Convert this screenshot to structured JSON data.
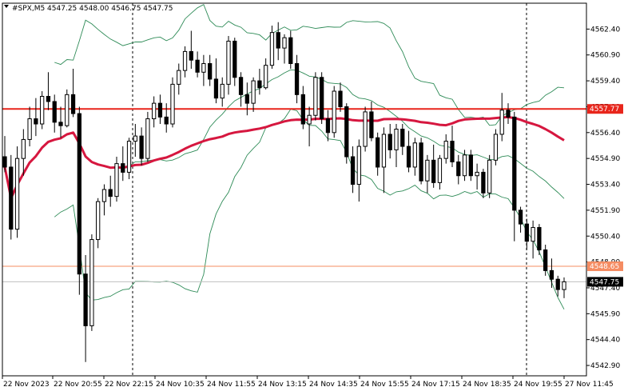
{
  "chart_data": {
    "type": "candlestick",
    "title": "#SPX,M5  4547.25 4548.00 4546.75 4547.75",
    "symbol": "#SPX",
    "timeframe": "M5",
    "ohlc_readout": {
      "open": "4547.25",
      "high": "4548.00",
      "low": "4546.75",
      "close": "4547.75"
    },
    "ylim": [
      4542.3,
      4563.9
    ],
    "y_ticks": [
      "4562.40",
      "4560.90",
      "4559.40",
      "4557.90",
      "4556.40",
      "4554.90",
      "4553.40",
      "4551.90",
      "4550.40",
      "4548.90",
      "4547.40",
      "4545.90",
      "4544.40",
      "4542.90"
    ],
    "x_ticks": [
      "22 Nov 2023",
      "22 Nov 20:55",
      "22 Nov 22:15",
      "24 Nov 10:35",
      "24 Nov 11:55",
      "24 Nov 13:15",
      "24 Nov 14:35",
      "24 Nov 15:55",
      "24 Nov 17:15",
      "24 Nov 18:35",
      "24 Nov 19:55",
      "27 Nov 11:45"
    ],
    "session_separators": [
      "22 Nov 22:15",
      "24 Nov 19:55"
    ],
    "horizontal_levels": [
      {
        "value": 4557.77,
        "label": "4557.77",
        "color": "#e8251b"
      },
      {
        "value": 4548.65,
        "label": "4548.65",
        "color": "#f58c62"
      }
    ],
    "current_price": {
      "value": 4547.75,
      "label": "4547.75"
    },
    "candles": [
      [
        4555.0,
        4556.2,
        4554.1,
        4554.4
      ],
      [
        4554.4,
        4555.1,
        4550.2,
        4550.8
      ],
      [
        4550.8,
        4555.6,
        4550.3,
        4554.9
      ],
      [
        4554.9,
        4556.6,
        4553.9,
        4556.0
      ],
      [
        4556.0,
        4557.9,
        4555.6,
        4557.2
      ],
      [
        4557.2,
        4558.4,
        4556.2,
        4556.9
      ],
      [
        4556.9,
        4558.8,
        4556.6,
        4558.5
      ],
      [
        4558.5,
        4559.9,
        4557.7,
        4558.2
      ],
      [
        4558.2,
        4558.6,
        4556.4,
        4557.0
      ],
      [
        4557.0,
        4557.9,
        4556.1,
        4556.8
      ],
      [
        4556.8,
        4558.9,
        4556.7,
        4558.6
      ],
      [
        4558.6,
        4560.1,
        4557.3,
        4557.5
      ],
      [
        4557.5,
        4557.9,
        4547.0,
        4548.2
      ],
      [
        4548.2,
        4549.3,
        4543.1,
        4545.2
      ],
      [
        4545.2,
        4550.5,
        4544.9,
        4550.2
      ],
      [
        4550.2,
        4552.6,
        4549.7,
        4552.4
      ],
      [
        4552.4,
        4553.4,
        4551.6,
        4553.1
      ],
      [
        4553.1,
        4553.9,
        4552.1,
        4552.7
      ],
      [
        4552.7,
        4555.0,
        4552.4,
        4554.6
      ],
      [
        4554.6,
        4555.6,
        4553.6,
        4554.1
      ],
      [
        4554.1,
        4556.1,
        4553.7,
        4555.9
      ],
      [
        4555.9,
        4556.9,
        4555.0,
        4556.2
      ],
      [
        4556.2,
        4556.7,
        4554.5,
        4554.9
      ],
      [
        4554.9,
        4557.6,
        4554.7,
        4557.2
      ],
      [
        4557.2,
        4558.5,
        4556.7,
        4558.1
      ],
      [
        4558.1,
        4558.6,
        4556.9,
        4557.3
      ],
      [
        4557.3,
        4558.1,
        4556.4,
        4556.9
      ],
      [
        4556.9,
        4559.6,
        4556.7,
        4559.2
      ],
      [
        4559.2,
        4560.4,
        4558.6,
        4560.0
      ],
      [
        4560.0,
        4561.4,
        4559.6,
        4561.1
      ],
      [
        4561.1,
        4562.3,
        4560.1,
        4560.6
      ],
      [
        4560.6,
        4561.1,
        4559.6,
        4559.9
      ],
      [
        4559.9,
        4560.9,
        4559.1,
        4560.4
      ],
      [
        4560.4,
        4560.9,
        4559.1,
        4559.5
      ],
      [
        4559.5,
        4560.7,
        4558.1,
        4558.4
      ],
      [
        4558.4,
        4559.6,
        4557.9,
        4559.2
      ],
      [
        4559.2,
        4562.0,
        4558.6,
        4561.7
      ],
      [
        4561.7,
        4561.9,
        4559.1,
        4559.6
      ],
      [
        4559.6,
        4559.9,
        4557.9,
        4558.6
      ],
      [
        4558.6,
        4559.3,
        4557.4,
        4558.1
      ],
      [
        4558.1,
        4559.6,
        4557.6,
        4559.4
      ],
      [
        4559.4,
        4560.1,
        4558.6,
        4559.0
      ],
      [
        4559.0,
        4560.7,
        4558.9,
        4560.3
      ],
      [
        4560.3,
        4562.6,
        4560.1,
        4562.2
      ],
      [
        4562.2,
        4562.8,
        4560.6,
        4561.3
      ],
      [
        4561.3,
        4562.1,
        4560.4,
        4561.9
      ],
      [
        4561.9,
        4562.3,
        4560.1,
        4560.4
      ],
      [
        4560.4,
        4560.9,
        4558.1,
        4558.6
      ],
      [
        4558.6,
        4559.1,
        4556.6,
        4556.9
      ],
      [
        4556.9,
        4557.9,
        4555.6,
        4557.4
      ],
      [
        4557.4,
        4559.9,
        4557.1,
        4559.6
      ],
      [
        4559.6,
        4559.9,
        4556.9,
        4557.2
      ],
      [
        4557.2,
        4557.7,
        4555.9,
        4556.4
      ],
      [
        4556.4,
        4559.1,
        4556.1,
        4558.8
      ],
      [
        4558.8,
        4559.3,
        4557.6,
        4557.9
      ],
      [
        4557.9,
        4558.1,
        4554.6,
        4555.0
      ],
      [
        4555.0,
        4555.6,
        4552.9,
        4553.4
      ],
      [
        4553.4,
        4556.0,
        4552.4,
        4555.6
      ],
      [
        4555.6,
        4557.9,
        4555.3,
        4557.6
      ],
      [
        4557.6,
        4558.2,
        4555.9,
        4556.1
      ],
      [
        4556.1,
        4556.4,
        4553.9,
        4554.4
      ],
      [
        4554.4,
        4556.7,
        4552.9,
        4556.3
      ],
      [
        4556.3,
        4556.9,
        4554.9,
        4555.4
      ],
      [
        4555.4,
        4556.9,
        4554.4,
        4556.6
      ],
      [
        4556.6,
        4556.9,
        4555.1,
        4555.6
      ],
      [
        4555.6,
        4556.5,
        4554.1,
        4554.4
      ],
      [
        4554.4,
        4556.1,
        4553.9,
        4555.8
      ],
      [
        4555.8,
        4556.1,
        4553.4,
        4553.6
      ],
      [
        4553.6,
        4555.1,
        4552.9,
        4554.8
      ],
      [
        4554.8,
        4555.7,
        4553.2,
        4553.5
      ],
      [
        4553.5,
        4555.1,
        4553.1,
        4554.9
      ],
      [
        4554.9,
        4556.3,
        4554.6,
        4555.9
      ],
      [
        4555.9,
        4556.8,
        4554.4,
        4554.7
      ],
      [
        4554.7,
        4555.1,
        4553.4,
        4553.9
      ],
      [
        4553.9,
        4555.4,
        4553.6,
        4555.1
      ],
      [
        4555.1,
        4555.4,
        4553.6,
        4553.9
      ],
      [
        4553.9,
        4554.6,
        4553.1,
        4554.1
      ],
      [
        4554.1,
        4554.3,
        4552.6,
        4552.9
      ],
      [
        4552.9,
        4555.1,
        4552.6,
        4554.8
      ],
      [
        4554.8,
        4556.6,
        4554.5,
        4556.3
      ],
      [
        4556.3,
        4558.7,
        4555.9,
        4557.7
      ],
      [
        4557.7,
        4558.1,
        4556.9,
        4557.3
      ],
      [
        4557.3,
        4557.6,
        4550.1,
        4551.9
      ],
      [
        4551.9,
        4552.1,
        4550.6,
        4551.1
      ],
      [
        4551.1,
        4551.4,
        4549.6,
        4550.1
      ],
      [
        4550.1,
        4551.3,
        4549.1,
        4550.9
      ],
      [
        4550.9,
        4551.1,
        4549.3,
        4549.6
      ],
      [
        4549.6,
        4549.9,
        4548.1,
        4548.4
      ],
      [
        4548.4,
        4549.1,
        4547.4,
        4547.9
      ],
      [
        4547.9,
        4548.1,
        4546.9,
        4547.3
      ],
      [
        4547.3,
        4548.0,
        4546.8,
        4547.75
      ]
    ]
  }
}
